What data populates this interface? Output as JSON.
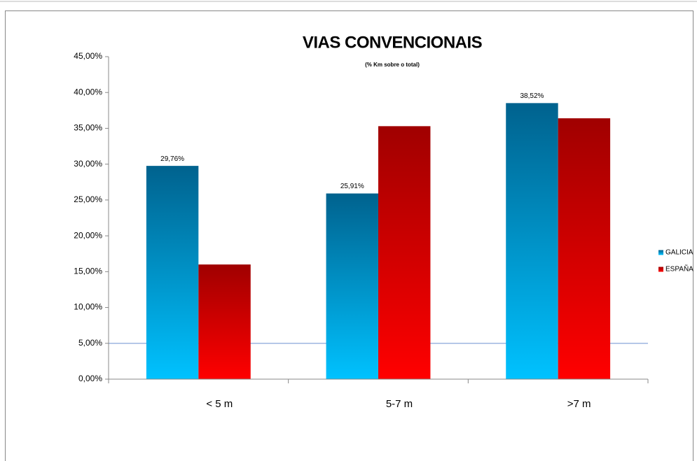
{
  "chart_data": {
    "type": "bar",
    "title": "VIAS CONVENCIONAIS",
    "subtitle": "(% Km sobre o total)",
    "categories": [
      "< 5 m",
      "5-7 m",
      ">7 m"
    ],
    "series": [
      {
        "name": "GALICIA",
        "gradient": [
          "#00628e",
          "#00c2ff"
        ],
        "values": [
          29.76,
          25.91,
          38.52
        ],
        "value_labels": [
          "29,76%",
          "25,91%",
          "38,52%"
        ]
      },
      {
        "name": "ESPAÑA",
        "gradient": [
          "#a00000",
          "#ff0000"
        ],
        "values": [
          16.0,
          35.3,
          36.4
        ]
      }
    ],
    "ylim": [
      0,
      45
    ],
    "yticks": [
      {
        "value": 0,
        "label": "0,00%"
      },
      {
        "value": 5,
        "label": "5,00%"
      },
      {
        "value": 10,
        "label": "10,00%"
      },
      {
        "value": 15,
        "label": "15,00%"
      },
      {
        "value": 20,
        "label": "20,00%"
      },
      {
        "value": 25,
        "label": "25,00%"
      },
      {
        "value": 30,
        "label": "30,00%"
      },
      {
        "value": 35,
        "label": "35,00%"
      },
      {
        "value": 40,
        "label": "40,00%"
      },
      {
        "value": 45,
        "label": "45,00%"
      }
    ],
    "hline": 5,
    "hline_color": "#9db5e0",
    "legend": "right"
  }
}
